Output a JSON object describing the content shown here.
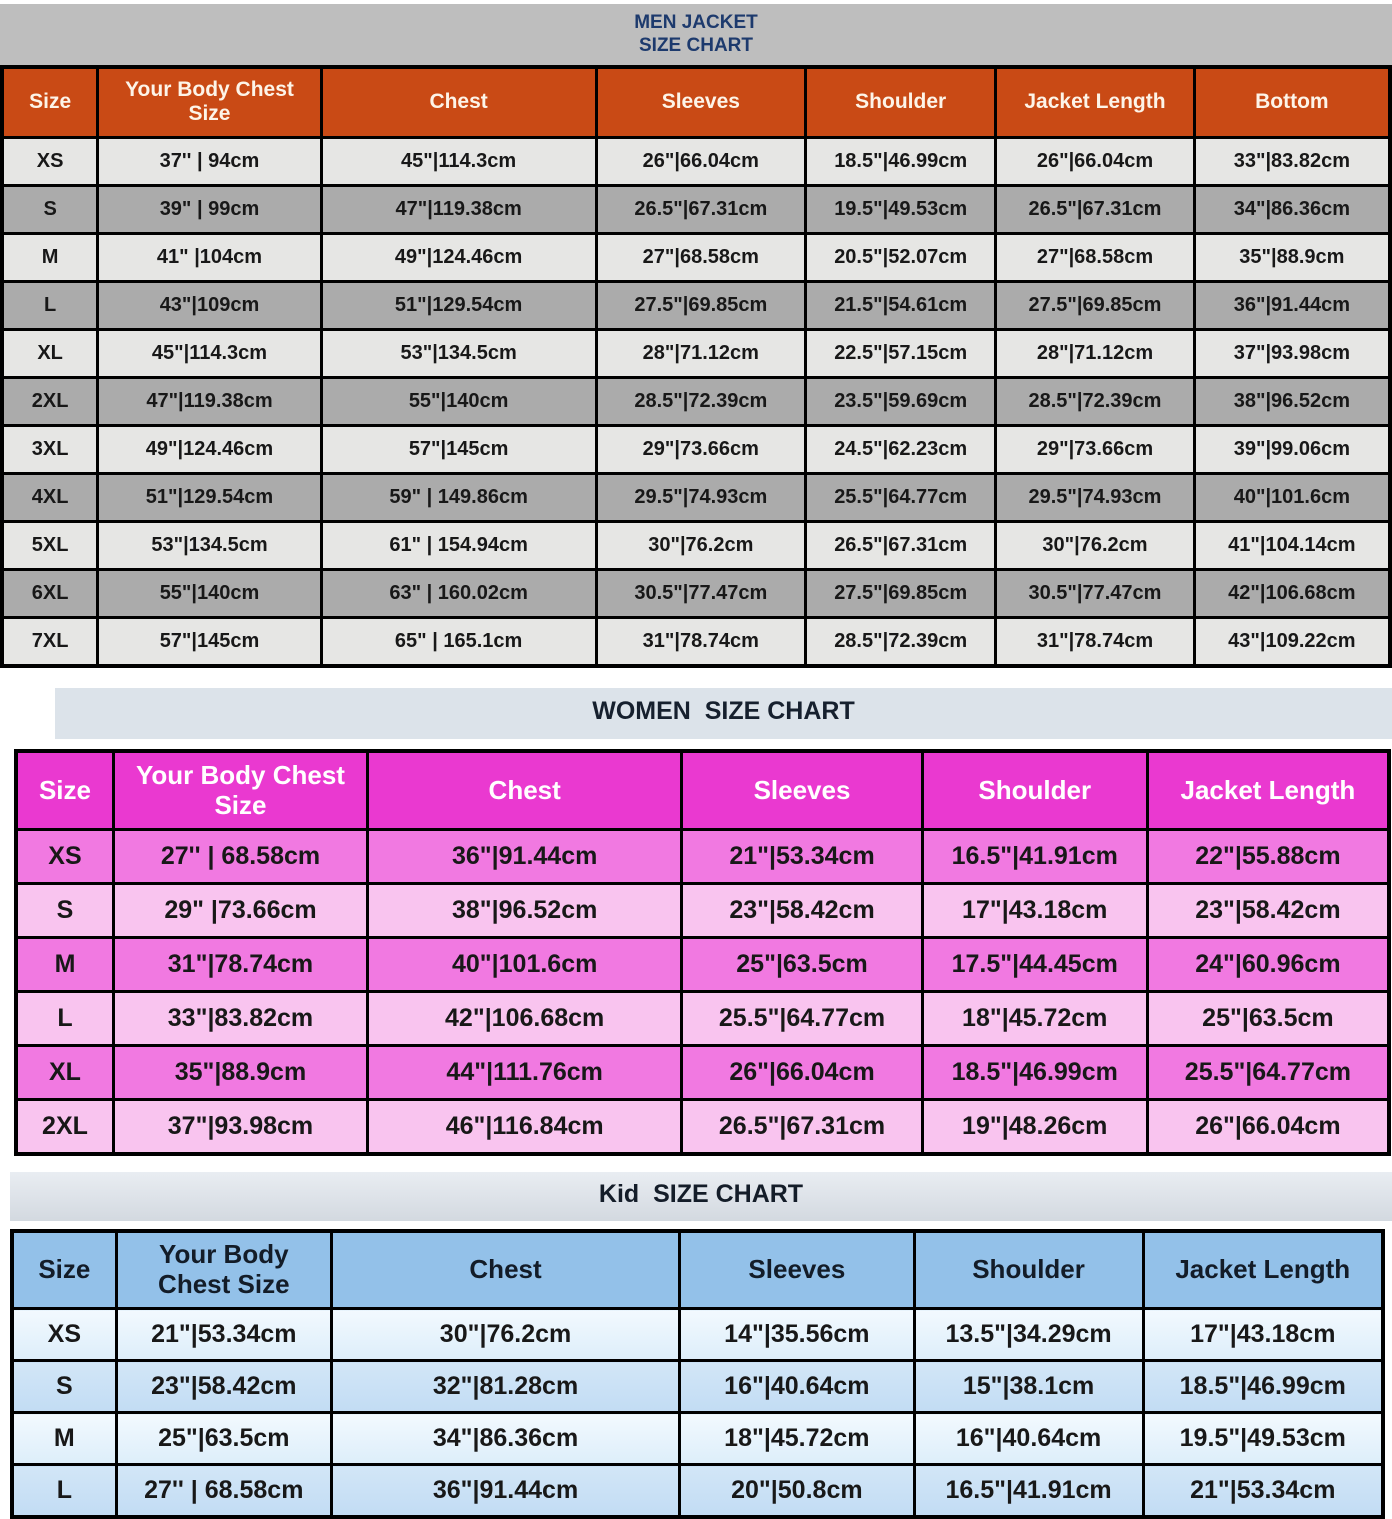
{
  "colors": {
    "men_header": "#c94a15",
    "men_title_text": "#1d3a6d",
    "men_band": "#bebebe",
    "men_row_light": "#e6e6e4",
    "men_row_dark": "#ababab",
    "women_header": "#ea39d0",
    "women_band": "#dce3ea",
    "women_row_medium": "#f179e1",
    "women_row_light": "#f9c4ef",
    "kid_header": "#93c1e9",
    "kid_row_light": "#e8f4fc",
    "kid_row_blue": "#c8def5"
  },
  "men_table": {
    "title_line1": "MEN JACKET",
    "title_line2": "SIZE CHART",
    "columns": [
      "Size",
      "Your Body Chest Size",
      "Chest",
      "Sleeves",
      "Shoulder",
      "Jacket Length",
      "Bottom"
    ],
    "rows": [
      [
        "XS",
        "37'' | 94cm",
        "45\"|114.3cm",
        "26\"|66.04cm",
        "18.5\"|46.99cm",
        "26\"|66.04cm",
        "33\"|83.82cm"
      ],
      [
        "S",
        "39\" | 99cm",
        "47\"|119.38cm",
        "26.5\"|67.31cm",
        "19.5\"|49.53cm",
        "26.5\"|67.31cm",
        "34\"|86.36cm"
      ],
      [
        "M",
        "41\" |104cm",
        "49\"|124.46cm",
        "27\"|68.58cm",
        "20.5\"|52.07cm",
        "27\"|68.58cm",
        "35\"|88.9cm"
      ],
      [
        "L",
        "43\"|109cm",
        "51\"|129.54cm",
        "27.5\"|69.85cm",
        "21.5\"|54.61cm",
        "27.5\"|69.85cm",
        "36\"|91.44cm"
      ],
      [
        "XL",
        "45\"|114.3cm",
        "53\"|134.5cm",
        "28\"|71.12cm",
        "22.5\"|57.15cm",
        "28\"|71.12cm",
        "37\"|93.98cm"
      ],
      [
        "2XL",
        "47\"|119.38cm",
        "55\"|140cm",
        "28.5\"|72.39cm",
        "23.5\"|59.69cm",
        "28.5\"|72.39cm",
        "38\"|96.52cm"
      ],
      [
        "3XL",
        "49\"|124.46cm",
        "57\"|145cm",
        "29\"|73.66cm",
        "24.5\"|62.23cm",
        "29\"|73.66cm",
        "39\"|99.06cm"
      ],
      [
        "4XL",
        "51\"|129.54cm",
        "59\" | 149.86cm",
        "29.5\"|74.93cm",
        "25.5\"|64.77cm",
        "29.5\"|74.93cm",
        "40\"|101.6cm"
      ],
      [
        "5XL",
        "53\"|134.5cm",
        "61\" | 154.94cm",
        "30\"|76.2cm",
        "26.5\"|67.31cm",
        "30\"|76.2cm",
        "41\"|104.14cm"
      ],
      [
        "6XL",
        "55\"|140cm",
        "63\" | 160.02cm",
        "30.5\"|77.47cm",
        "27.5\"|69.85cm",
        "30.5\"|77.47cm",
        "42\"|106.68cm"
      ],
      [
        "7XL",
        "57\"|145cm",
        "65\" | 165.1cm",
        "31\"|78.74cm",
        "28.5\"|72.39cm",
        "31\"|78.74cm",
        "43\"|109.22cm"
      ]
    ]
  },
  "women_table": {
    "title": "WOMEN  SIZE CHART",
    "columns": [
      "Size",
      "Your Body Chest Size",
      "Chest",
      "Sleeves",
      "Shoulder",
      "Jacket Length"
    ],
    "rows": [
      [
        "XS",
        "27'' | 68.58cm",
        "36\"|91.44cm",
        "21\"|53.34cm",
        "16.5\"|41.91cm",
        "22\"|55.88cm"
      ],
      [
        "S",
        "29\" |73.66cm",
        "38\"|96.52cm",
        "23\"|58.42cm",
        "17\"|43.18cm",
        "23\"|58.42cm"
      ],
      [
        "M",
        "31\"|78.74cm",
        "40\"|101.6cm",
        "25\"|63.5cm",
        "17.5\"|44.45cm",
        "24\"|60.96cm"
      ],
      [
        "L",
        "33\"|83.82cm",
        "42\"|106.68cm",
        "25.5\"|64.77cm",
        "18\"|45.72cm",
        "25\"|63.5cm"
      ],
      [
        "XL",
        "35\"|88.9cm",
        "44\"|111.76cm",
        "26\"|66.04cm",
        "18.5\"|46.99cm",
        "25.5\"|64.77cm"
      ],
      [
        "2XL",
        "37\"|93.98cm",
        "46\"|116.84cm",
        "26.5\"|67.31cm",
        "19\"|48.26cm",
        "26\"|66.04cm"
      ]
    ]
  },
  "kid_table": {
    "title": "Kid  SIZE CHART",
    "columns": [
      "Size",
      "Your Body Chest Size",
      "Chest",
      "Sleeves",
      "Shoulder",
      "Jacket Length"
    ],
    "rows": [
      [
        "XS",
        "21\"|53.34cm",
        "30\"|76.2cm",
        "14\"|35.56cm",
        "13.5\"|34.29cm",
        "17\"|43.18cm"
      ],
      [
        "S",
        "23\"|58.42cm",
        "32\"|81.28cm",
        "16\"|40.64cm",
        "15\"|38.1cm",
        "18.5\"|46.99cm"
      ],
      [
        "M",
        "25\"|63.5cm",
        "34\"|86.36cm",
        "18\"|45.72cm",
        "16\"|40.64cm",
        "19.5\"|49.53cm"
      ],
      [
        "L",
        "27'' | 68.58cm",
        "36\"|91.44cm",
        "20\"|50.8cm",
        "16.5\"|41.91cm",
        "21\"|53.34cm"
      ]
    ]
  }
}
